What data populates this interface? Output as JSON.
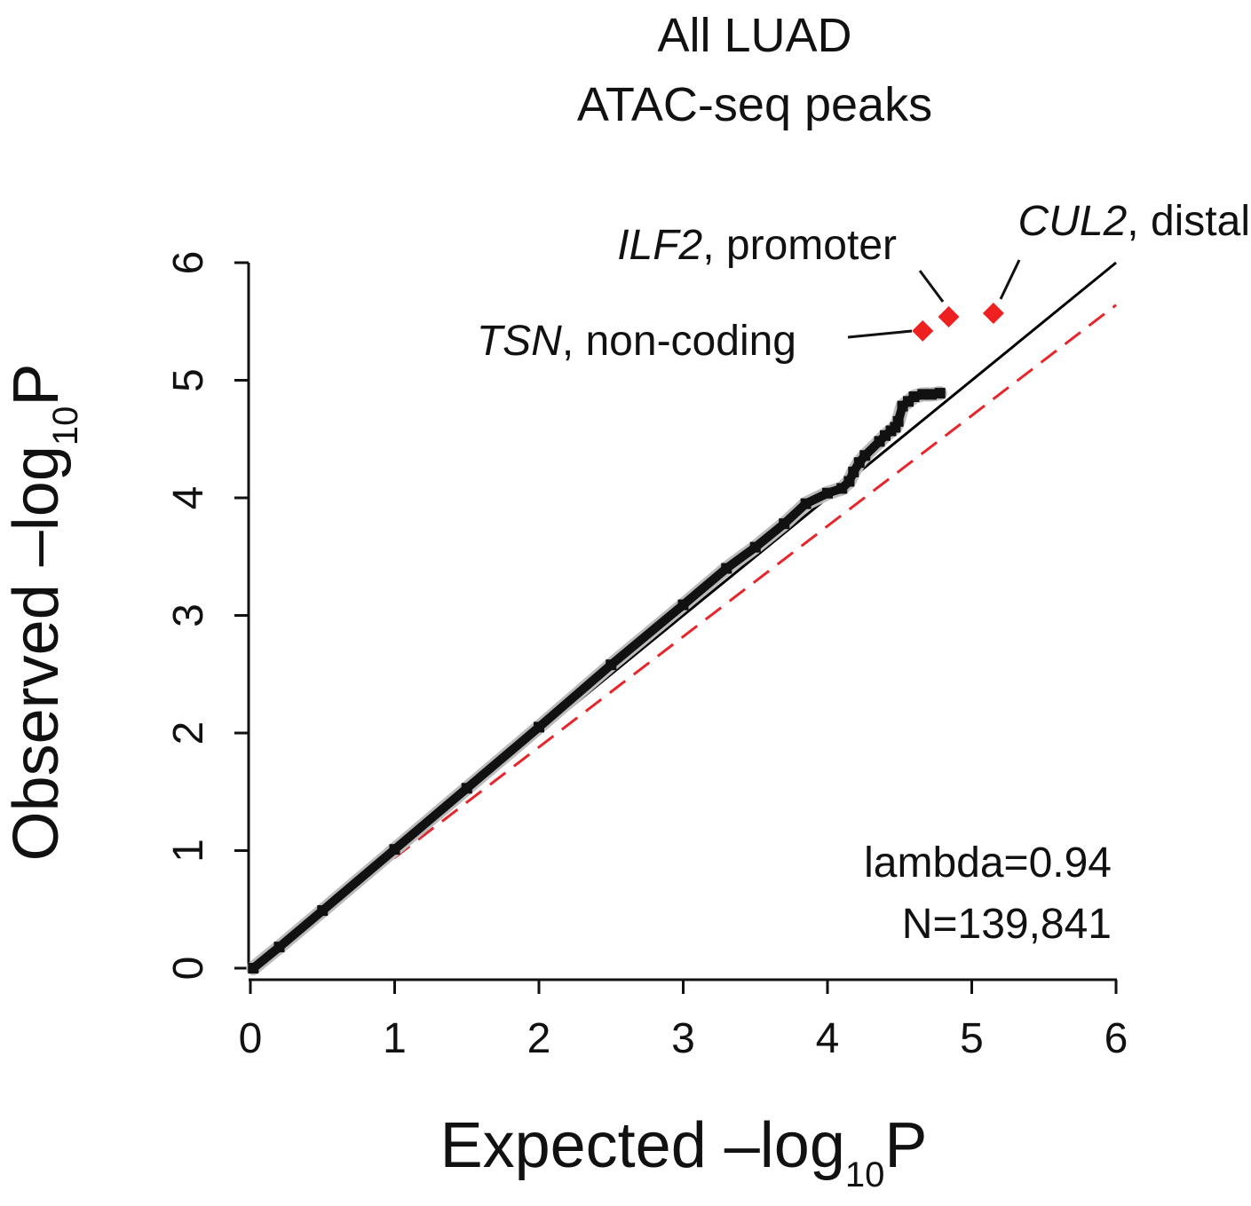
{
  "chart_data": {
    "type": "scatter",
    "title_line1": "All LUAD",
    "title_line2": "ATAC-seq peaks",
    "xlabel": {
      "prefix": "Expected –log",
      "sub": "10",
      "suffix": "P"
    },
    "ylabel": {
      "prefix": "Observed –log",
      "sub": "10",
      "suffix": "P"
    },
    "xlim": [
      0,
      6
    ],
    "ylim": [
      0,
      6
    ],
    "x_ticks": [
      "0",
      "1",
      "2",
      "3",
      "4",
      "5",
      "6"
    ],
    "y_ticks": [
      "0",
      "1",
      "2",
      "3",
      "4",
      "5",
      "6"
    ],
    "stats": {
      "lambda": "lambda=0.94",
      "n": "N=139,841"
    },
    "reference_lines": [
      {
        "type": "identity",
        "slope": 1.0,
        "color": "#000000",
        "style": "solid"
      },
      {
        "type": "lambda",
        "slope": 0.94,
        "color": "#e8252a",
        "style": "dashed"
      }
    ],
    "series": [
      {
        "color": "#111111",
        "marker": "square",
        "points": [
          [
            0.02,
            0.0
          ],
          [
            0.2,
            0.18
          ],
          [
            0.5,
            0.49
          ],
          [
            1.0,
            1.01
          ],
          [
            1.5,
            1.53
          ],
          [
            2.0,
            2.05
          ],
          [
            2.5,
            2.58
          ],
          [
            3.0,
            3.09
          ],
          [
            3.3,
            3.4
          ],
          [
            3.5,
            3.58
          ],
          [
            3.7,
            3.78
          ],
          [
            3.85,
            3.95
          ],
          [
            4.0,
            4.04
          ],
          [
            4.1,
            4.08
          ],
          [
            4.15,
            4.14
          ],
          [
            4.18,
            4.22
          ],
          [
            4.22,
            4.3
          ],
          [
            4.26,
            4.36
          ],
          [
            4.36,
            4.48
          ],
          [
            4.4,
            4.53
          ],
          [
            4.44,
            4.57
          ],
          [
            4.47,
            4.6
          ],
          [
            4.49,
            4.65
          ],
          [
            4.52,
            4.78
          ],
          [
            4.56,
            4.82
          ],
          [
            4.6,
            4.86
          ],
          [
            4.66,
            4.88
          ],
          [
            4.72,
            4.88
          ],
          [
            4.78,
            4.89
          ]
        ]
      },
      {
        "color": "#ee2020",
        "marker": "diamond",
        "points": [
          [
            4.66,
            5.42
          ],
          [
            4.84,
            5.54
          ],
          [
            5.15,
            5.57
          ]
        ]
      }
    ],
    "annotations": [
      {
        "gene": "TSN",
        "rest": ", non-coding",
        "point": [
          4.66,
          5.42
        ]
      },
      {
        "gene": "ILF2",
        "rest": ", promoter",
        "point": [
          4.84,
          5.54
        ]
      },
      {
        "gene": "CUL2",
        "rest": ", distal",
        "point": [
          5.15,
          5.57
        ]
      }
    ]
  }
}
